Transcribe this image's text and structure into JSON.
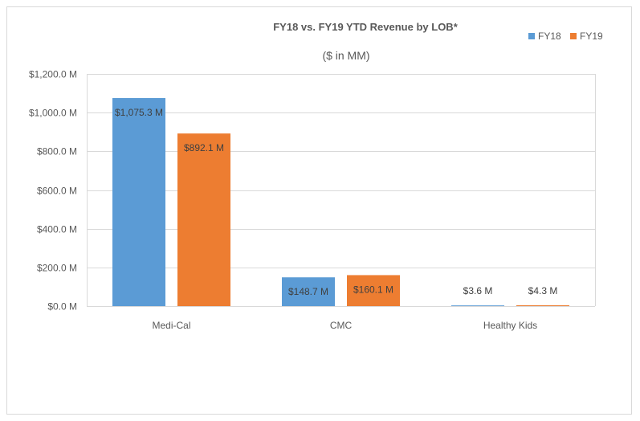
{
  "chart_data": {
    "type": "bar",
    "title": "FY18 vs. FY19 YTD Revenue by LOB*",
    "subtitle": "($ in MM)",
    "categories": [
      "Medi-Cal",
      "CMC",
      "Healthy Kids"
    ],
    "series": [
      {
        "name": "FY18",
        "color": "#5b9bd5",
        "values": [
          1075.3,
          148.7,
          3.6
        ],
        "labels": [
          "$1,075.3 M",
          "$148.7 M",
          "$3.6 M"
        ]
      },
      {
        "name": "FY19",
        "color": "#ed7d31",
        "values": [
          892.1,
          160.1,
          4.3
        ],
        "labels": [
          "$892.1 M",
          "$160.1 M",
          "$4.3 M"
        ]
      }
    ],
    "ylim": [
      0,
      1200
    ],
    "yticks": [
      0,
      200,
      400,
      600,
      800,
      1000,
      1200
    ],
    "ytick_labels": [
      "$0.0 M",
      "$200.0 M",
      "$400.0 M",
      "$600.0 M",
      "$800.0 M",
      "$1,000.0 M",
      "$1,200.0 M"
    ],
    "xlabel": "",
    "ylabel": "",
    "grid": true,
    "legend_position": "top-right",
    "gridline_color": "#d9d9d9"
  }
}
